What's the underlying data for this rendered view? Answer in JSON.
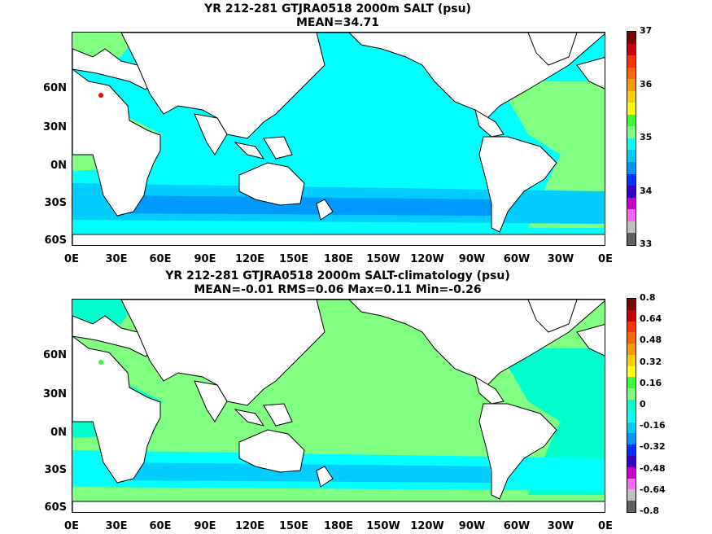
{
  "panels": [
    {
      "title_line1": "YR 212-281 GTJRA0518 2000m SALT (psu)",
      "title_line2": "MEAN=34.71",
      "colorbar_labels": [
        "37",
        "36",
        "35",
        "34",
        "33"
      ],
      "colorbar_colors": [
        "#800000",
        "#cc0000",
        "#ff3300",
        "#ff6600",
        "#ff9900",
        "#ffcc00",
        "#ffff00",
        "#33ff33",
        "#80ff80",
        "#00ffff",
        "#00ccff",
        "#0099ff",
        "#0033ff",
        "#3300cc",
        "#cc00cc",
        "#ff66ff",
        "#c0c0c0",
        "#606060"
      ],
      "colors": {
        "pacific": "#00ffff",
        "atlantic": "#80ff80",
        "southern": "#00ccff",
        "deep": "#0099ff",
        "high": "#ff0000"
      }
    },
    {
      "title_line1": "YR 212-281 GTJRA0518 2000m SALT-climatology (psu)",
      "title_line2": "MEAN=-0.01   RMS=0.06   Max=0.11   Min=-0.26",
      "colorbar_labels": [
        "0.8",
        "0.64",
        "0.48",
        "0.32",
        "0.16",
        "0",
        "-0.16",
        "-0.32",
        "-0.48",
        "-0.64",
        "-0.8"
      ],
      "colorbar_colors": [
        "#800000",
        "#cc0000",
        "#ff3300",
        "#ff6600",
        "#ff9900",
        "#ffcc00",
        "#ffff00",
        "#33ff33",
        "#80ff80",
        "#00ffcc",
        "#00ffff",
        "#00ccff",
        "#0099ff",
        "#0033ff",
        "#3300cc",
        "#cc00cc",
        "#ff66ff",
        "#c0c0c0",
        "#606060"
      ],
      "colors": {
        "pacific": "#80ff80",
        "atlantic": "#00ffcc",
        "southern": "#00ffff",
        "deep": "#00ccff",
        "high": "#33ff33"
      }
    }
  ],
  "lat_labels": [
    "60N",
    "30N",
    "0N",
    "30S",
    "60S"
  ],
  "lon_labels": [
    "0E",
    "30E",
    "60E",
    "90E",
    "120E",
    "150E",
    "180E",
    "150W",
    "120W",
    "90W",
    "60W",
    "30W",
    "0E"
  ]
}
